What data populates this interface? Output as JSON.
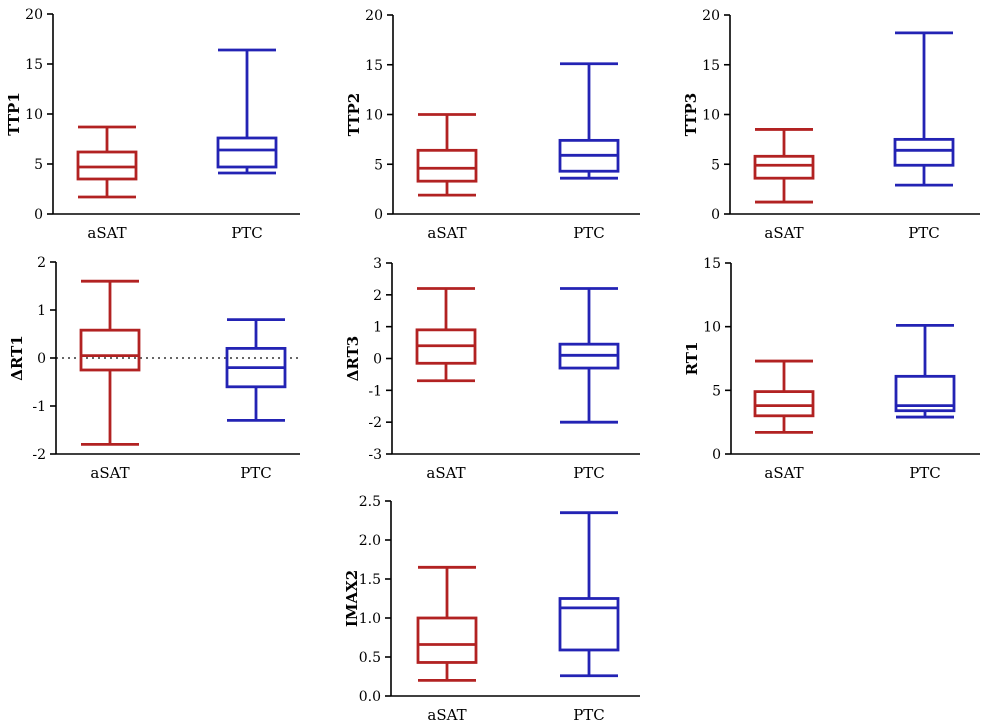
{
  "colors": {
    "aSAT": "#b22222",
    "PTC": "#2323b4",
    "axis": "#000000"
  },
  "chart_data": [
    {
      "type": "box",
      "title": "",
      "ylabel": "TTP1",
      "categories": [
        "aSAT",
        "PTC"
      ],
      "ylim": [
        0,
        20
      ],
      "yticks": [
        0,
        5,
        10,
        15,
        20
      ],
      "ytick_labels": [
        "0",
        "5",
        "10",
        "15",
        "20"
      ],
      "boxes": [
        {
          "name": "aSAT",
          "min": 1.7,
          "q1": 3.5,
          "median": 4.7,
          "q3": 6.2,
          "max": 8.7
        },
        {
          "name": "PTC",
          "min": 4.1,
          "q1": 4.7,
          "median": 6.4,
          "q3": 7.6,
          "max": 16.4
        }
      ]
    },
    {
      "type": "box",
      "title": "",
      "ylabel": "TTP2",
      "categories": [
        "aSAT",
        "PTC"
      ],
      "ylim": [
        0,
        20
      ],
      "yticks": [
        0,
        5,
        10,
        15,
        20
      ],
      "ytick_labels": [
        "0",
        "5",
        "10",
        "15",
        "20"
      ],
      "boxes": [
        {
          "name": "aSAT",
          "min": 1.9,
          "q1": 3.3,
          "median": 4.6,
          "q3": 6.4,
          "max": 10.0
        },
        {
          "name": "PTC",
          "min": 3.6,
          "q1": 4.3,
          "median": 5.9,
          "q3": 7.4,
          "max": 15.1
        }
      ]
    },
    {
      "type": "box",
      "title": "",
      "ylabel": "TTP3",
      "categories": [
        "aSAT",
        "PTC"
      ],
      "ylim": [
        0,
        20
      ],
      "yticks": [
        0,
        5,
        10,
        15,
        20
      ],
      "ytick_labels": [
        "0",
        "5",
        "10",
        "15",
        "20"
      ],
      "boxes": [
        {
          "name": "aSAT",
          "min": 1.2,
          "q1": 3.6,
          "median": 4.9,
          "q3": 5.8,
          "max": 8.5
        },
        {
          "name": "PTC",
          "min": 2.9,
          "q1": 4.9,
          "median": 6.4,
          "q3": 7.5,
          "max": 18.2
        }
      ]
    },
    {
      "type": "box",
      "title": "",
      "ylabel": "ΔRT1",
      "categories": [
        "aSAT",
        "PTC"
      ],
      "ylim": [
        -2,
        2
      ],
      "yticks": [
        -2,
        -1,
        0,
        1,
        2
      ],
      "ytick_labels": [
        "-2",
        "-1",
        "0",
        "1",
        "2"
      ],
      "reference_line": 0,
      "boxes": [
        {
          "name": "aSAT",
          "min": -1.8,
          "q1": -0.25,
          "median": 0.05,
          "q3": 0.58,
          "max": 1.6
        },
        {
          "name": "PTC",
          "min": -1.3,
          "q1": -0.6,
          "median": -0.2,
          "q3": 0.2,
          "max": 0.8
        }
      ]
    },
    {
      "type": "box",
      "title": "",
      "ylabel": "ΔRT3",
      "categories": [
        "aSAT",
        "PTC"
      ],
      "ylim": [
        -3,
        3
      ],
      "yticks": [
        -3,
        -2,
        -1,
        0,
        1,
        2,
        3
      ],
      "ytick_labels": [
        "-3",
        "-2",
        "-1",
        "0",
        "1",
        "2",
        "3"
      ],
      "boxes": [
        {
          "name": "aSAT",
          "min": -0.7,
          "q1": -0.15,
          "median": 0.4,
          "q3": 0.9,
          "max": 2.2
        },
        {
          "name": "PTC",
          "min": -2.0,
          "q1": -0.3,
          "median": 0.1,
          "q3": 0.45,
          "max": 2.2
        }
      ]
    },
    {
      "type": "box",
      "title": "",
      "ylabel": "RT1",
      "categories": [
        "aSAT",
        "PTC"
      ],
      "ylim": [
        0,
        15
      ],
      "yticks": [
        0,
        5,
        10,
        15
      ],
      "ytick_labels": [
        "0",
        "5",
        "10",
        "15"
      ],
      "boxes": [
        {
          "name": "aSAT",
          "min": 1.7,
          "q1": 3.0,
          "median": 3.8,
          "q3": 4.9,
          "max": 7.3
        },
        {
          "name": "PTC",
          "min": 2.9,
          "q1": 3.4,
          "median": 3.8,
          "q3": 6.1,
          "max": 10.1
        }
      ]
    },
    {
      "type": "box",
      "title": "",
      "ylabel": "IMAX2",
      "categories": [
        "aSAT",
        "PTC"
      ],
      "ylim": [
        0,
        2.5
      ],
      "yticks": [
        0,
        0.5,
        1.0,
        1.5,
        2.0,
        2.5
      ],
      "ytick_labels": [
        "0.0",
        "0.5",
        "1.0",
        "1.5",
        "2.0",
        "2.5"
      ],
      "boxes": [
        {
          "name": "aSAT",
          "min": 0.2,
          "q1": 0.43,
          "median": 0.66,
          "q3": 1.0,
          "max": 1.65
        },
        {
          "name": "PTC",
          "min": 0.26,
          "q1": 0.59,
          "median": 1.13,
          "q3": 1.25,
          "max": 2.35
        }
      ]
    }
  ]
}
